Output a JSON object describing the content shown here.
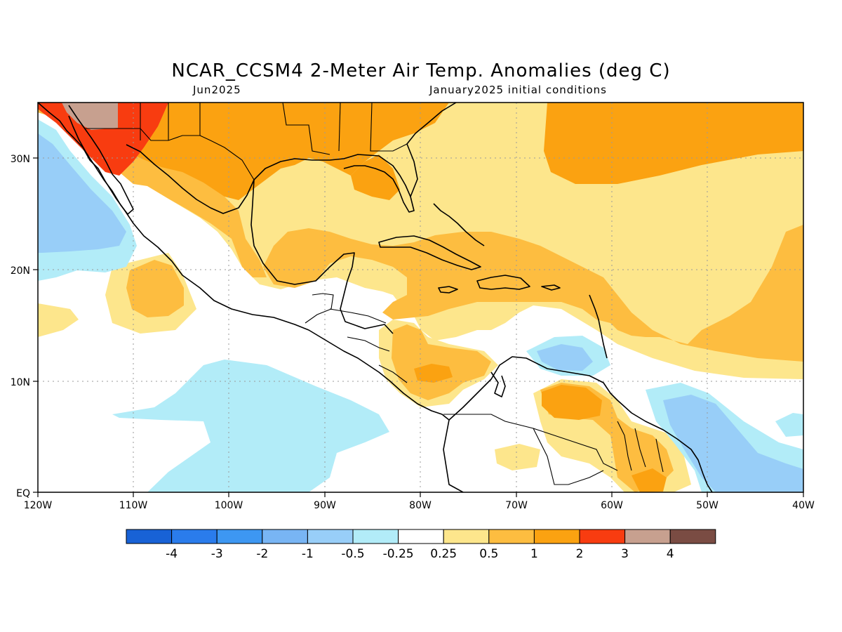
{
  "header": {
    "title": "NCAR_CCSM4 2-Meter Air Temp. Anomalies (deg C)",
    "month": "Jun2025",
    "init": "January2025 initial conditions"
  },
  "axes": {
    "lon_labels": [
      "120W",
      "110W",
      "100W",
      "90W",
      "80W",
      "70W",
      "60W",
      "50W",
      "40W"
    ],
    "lat_labels": [
      "EQ",
      "10N",
      "20N",
      "30N"
    ]
  },
  "colorbar": {
    "colors": [
      "#1862d6",
      "#2a7cec",
      "#3d97f2",
      "#78b5f4",
      "#98cef8",
      "#b2ecf8",
      "#ffffff",
      "#fde68c",
      "#fdbd40",
      "#fba211",
      "#f83c10",
      "#c7a08f",
      "#7a4c43"
    ],
    "labels": [
      "-4",
      "-3",
      "-2",
      "-1",
      "-0.5",
      "-0.25",
      "0.25",
      "0.5",
      "1",
      "2",
      "3",
      "4"
    ]
  }
}
